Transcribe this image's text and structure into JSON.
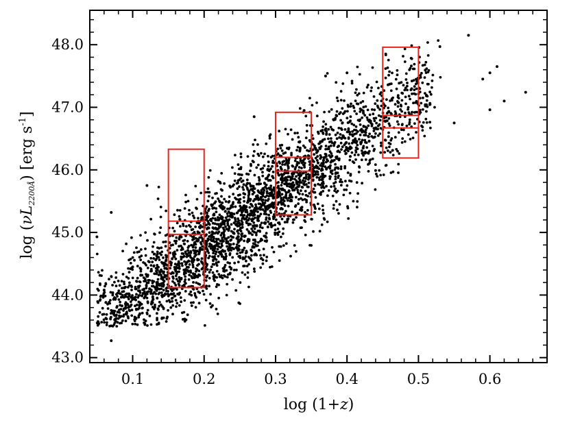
{
  "chart_data": {
    "type": "scatter",
    "title": "",
    "xlabel": "log (1+z)",
    "ylabel": "log (νL2200Å) [erg s-1]",
    "xlabel_parts": {
      "prefix": "log (1+",
      "var": "z",
      "suffix": ")"
    },
    "ylabel_parts": {
      "prefix": "log (",
      "nu": "ν",
      "L": "L",
      "sub": "2200Å",
      "middle": ") [erg s",
      "sup": "-1",
      "suffix": "]"
    },
    "xlim": [
      0.04,
      0.68
    ],
    "ylim": [
      42.92,
      48.55
    ],
    "xticks": [
      0.1,
      0.2,
      0.3,
      0.4,
      0.5,
      0.6
    ],
    "xtick_labels": [
      "0.1",
      "0.2",
      "0.3",
      "0.4",
      "0.5",
      "0.6"
    ],
    "yticks": [
      43.0,
      44.0,
      45.0,
      46.0,
      47.0,
      48.0
    ],
    "ytick_labels": [
      "43.0",
      "44.0",
      "45.0",
      "46.0",
      "47.0",
      "48.0"
    ],
    "x_minor_step": 0.02,
    "y_minor_step": 0.2,
    "grid": false,
    "point_color": "#000000",
    "box_color": "#e8221c",
    "trend": {
      "intercept": 43.1,
      "slope": 8.2,
      "spread": 0.42,
      "n_points": 3000,
      "x_range": [
        0.05,
        0.52
      ]
    },
    "points": [
      {
        "x": 0.07,
        "y": 43.27
      },
      {
        "x": 0.65,
        "y": 47.24
      },
      {
        "x": 0.57,
        "y": 48.15
      },
      {
        "x": 0.05,
        "y": 44.93
      },
      {
        "x": 0.06,
        "y": 44.08
      },
      {
        "x": 0.09,
        "y": 43.8
      },
      {
        "x": 0.07,
        "y": 45.32
      },
      {
        "x": 0.12,
        "y": 45.75
      },
      {
        "x": 0.6,
        "y": 46.96
      },
      {
        "x": 0.61,
        "y": 47.65
      },
      {
        "x": 0.62,
        "y": 47.1
      },
      {
        "x": 0.6,
        "y": 47.55
      },
      {
        "x": 0.59,
        "y": 47.45
      },
      {
        "x": 0.53,
        "y": 47.97
      },
      {
        "x": 0.49,
        "y": 47.66
      },
      {
        "x": 0.55,
        "y": 46.75
      },
      {
        "x": 0.44,
        "y": 45.99
      },
      {
        "x": 0.25,
        "y": 44.62
      },
      {
        "x": 0.37,
        "y": 47.5
      },
      {
        "x": 0.19,
        "y": 44.1
      },
      {
        "x": 0.32,
        "y": 45.27
      },
      {
        "x": 0.4,
        "y": 47.55
      },
      {
        "x": 0.34,
        "y": 46.95
      },
      {
        "x": 0.27,
        "y": 46.85
      },
      {
        "x": 0.15,
        "y": 44.35
      },
      {
        "x": 0.1,
        "y": 44.45
      }
    ],
    "boxes": [
      {
        "x0": 0.15,
        "x1": 0.2,
        "y0": 44.12,
        "y1": 46.33,
        "inner": [
          44.97,
          45.18
        ]
      },
      {
        "x0": 0.3,
        "x1": 0.35,
        "y0": 45.28,
        "y1": 46.92,
        "inner": [
          45.98,
          46.2
        ]
      },
      {
        "x0": 0.45,
        "x1": 0.5,
        "y0": 46.19,
        "y1": 47.96,
        "inner": [
          46.67,
          46.87
        ]
      }
    ]
  }
}
